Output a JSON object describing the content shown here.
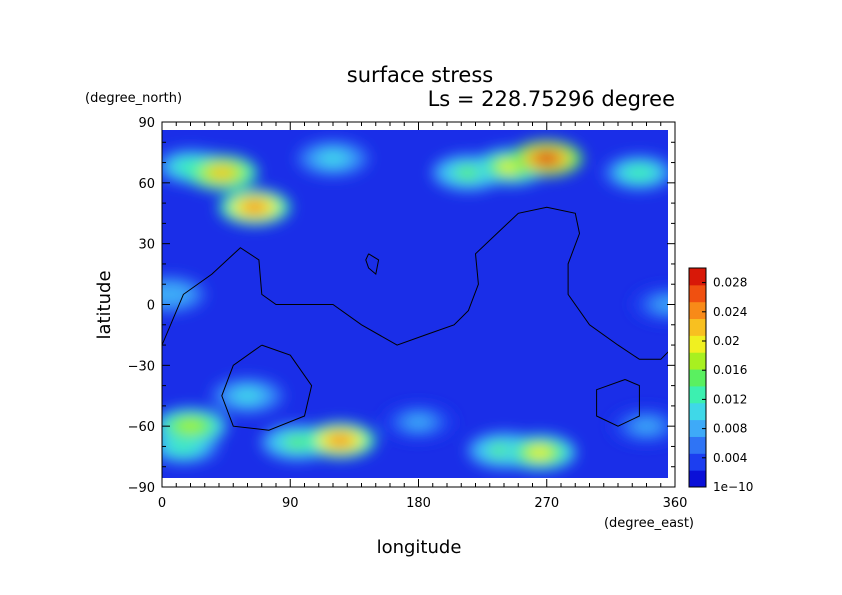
{
  "chart_data": {
    "type": "heatmap",
    "title": "surface stress",
    "subtitle": "Ls = 228.75296 degree",
    "xlabel": "longitude",
    "ylabel": "latitude",
    "x_unit": "(degree_east)",
    "y_unit": "(degree_north)",
    "xlim": [
      0,
      360
    ],
    "ylim": [
      -90,
      90
    ],
    "x_ticks": [
      "0",
      "90",
      "180",
      "270",
      "360"
    ],
    "y_ticks": [
      "90",
      "60",
      "30",
      "0",
      "−30",
      "−60",
      "−90"
    ],
    "x_tick_values": [
      0,
      90,
      180,
      270,
      360
    ],
    "y_tick_values": [
      90,
      60,
      30,
      0,
      -30,
      -60,
      -90
    ],
    "colorbar": {
      "min": 0,
      "max": 0.03,
      "labels": [
        "1e−10",
        "0.004",
        "0.008",
        "0.012",
        "0.016",
        "0.02",
        "0.024",
        "0.028"
      ],
      "label_values": [
        0,
        0.004,
        0.008,
        0.012,
        0.016,
        0.02,
        0.024,
        0.028
      ],
      "colors": [
        "#0a10d8",
        "#1c3ef0",
        "#2f74f5",
        "#3eaaf8",
        "#3fd8e8",
        "#3cf0b0",
        "#5af060",
        "#a8f020",
        "#f0f020",
        "#f8c020",
        "#f88a18",
        "#f05010",
        "#d81808"
      ]
    },
    "field_hotspots": [
      {
        "lon": 270,
        "lat": 72,
        "value": 0.028
      },
      {
        "lon": 245,
        "lat": 68,
        "value": 0.02
      },
      {
        "lon": 215,
        "lat": 65,
        "value": 0.014
      },
      {
        "lon": 42,
        "lat": 65,
        "value": 0.022
      },
      {
        "lon": 20,
        "lat": 68,
        "value": 0.012
      },
      {
        "lon": 65,
        "lat": 48,
        "value": 0.024
      },
      {
        "lon": 120,
        "lat": 72,
        "value": 0.01
      },
      {
        "lon": 335,
        "lat": 65,
        "value": 0.012
      },
      {
        "lon": 5,
        "lat": 5,
        "value": 0.009
      },
      {
        "lon": 355,
        "lat": 0,
        "value": 0.008
      },
      {
        "lon": 125,
        "lat": -67,
        "value": 0.024
      },
      {
        "lon": 95,
        "lat": -68,
        "value": 0.014
      },
      {
        "lon": 20,
        "lat": -60,
        "value": 0.018
      },
      {
        "lon": 15,
        "lat": -70,
        "value": 0.012
      },
      {
        "lon": 265,
        "lat": -73,
        "value": 0.02
      },
      {
        "lon": 240,
        "lat": -72,
        "value": 0.014
      },
      {
        "lon": 60,
        "lat": -45,
        "value": 0.01
      },
      {
        "lon": 180,
        "lat": -58,
        "value": 0.008
      },
      {
        "lon": 340,
        "lat": -60,
        "value": 0.008
      }
    ],
    "contours": [
      [
        [
          0,
          -20
        ],
        [
          15,
          5
        ],
        [
          35,
          15
        ],
        [
          55,
          28
        ],
        [
          68,
          22
        ],
        [
          70,
          5
        ],
        [
          80,
          0
        ],
        [
          100,
          0
        ],
        [
          120,
          0
        ],
        [
          140,
          -10
        ],
        [
          165,
          -20
        ],
        [
          185,
          -15
        ],
        [
          205,
          -10
        ],
        [
          215,
          -3
        ],
        [
          222,
          10
        ],
        [
          220,
          25
        ],
        [
          235,
          35
        ],
        [
          250,
          45
        ],
        [
          270,
          48
        ],
        [
          290,
          45
        ],
        [
          293,
          35
        ],
        [
          285,
          20
        ],
        [
          285,
          5
        ],
        [
          300,
          -10
        ],
        [
          320,
          -20
        ],
        [
          335,
          -27
        ],
        [
          350,
          -27
        ],
        [
          360,
          -20
        ]
      ],
      [
        [
          145,
          25
        ],
        [
          152,
          22
        ],
        [
          150,
          15
        ],
        [
          145,
          18
        ],
        [
          143,
          22
        ],
        [
          145,
          25
        ]
      ],
      [
        [
          70,
          -20
        ],
        [
          90,
          -25
        ],
        [
          105,
          -40
        ],
        [
          100,
          -55
        ],
        [
          75,
          -62
        ],
        [
          50,
          -60
        ],
        [
          42,
          -45
        ],
        [
          50,
          -30
        ],
        [
          70,
          -20
        ]
      ],
      [
        [
          325,
          -37
        ],
        [
          335,
          -40
        ],
        [
          335,
          -55
        ],
        [
          320,
          -60
        ],
        [
          305,
          -55
        ],
        [
          305,
          -42
        ],
        [
          325,
          -37
        ]
      ]
    ]
  }
}
